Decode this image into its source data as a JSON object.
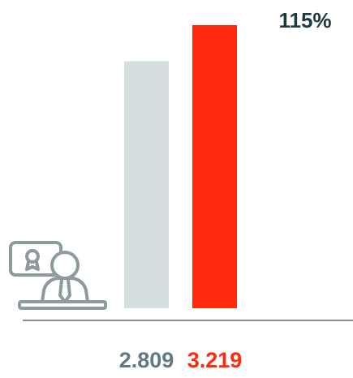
{
  "chart_data": {
    "type": "bar",
    "values": [
      2.809,
      3.219
    ],
    "colors": [
      "#d5dfe0",
      "#ff2a0e"
    ],
    "label_colors": [
      "#5f7a80",
      "#ff2a0e"
    ],
    "annotation": "115%",
    "annotation_color": "#1e3a40"
  }
}
